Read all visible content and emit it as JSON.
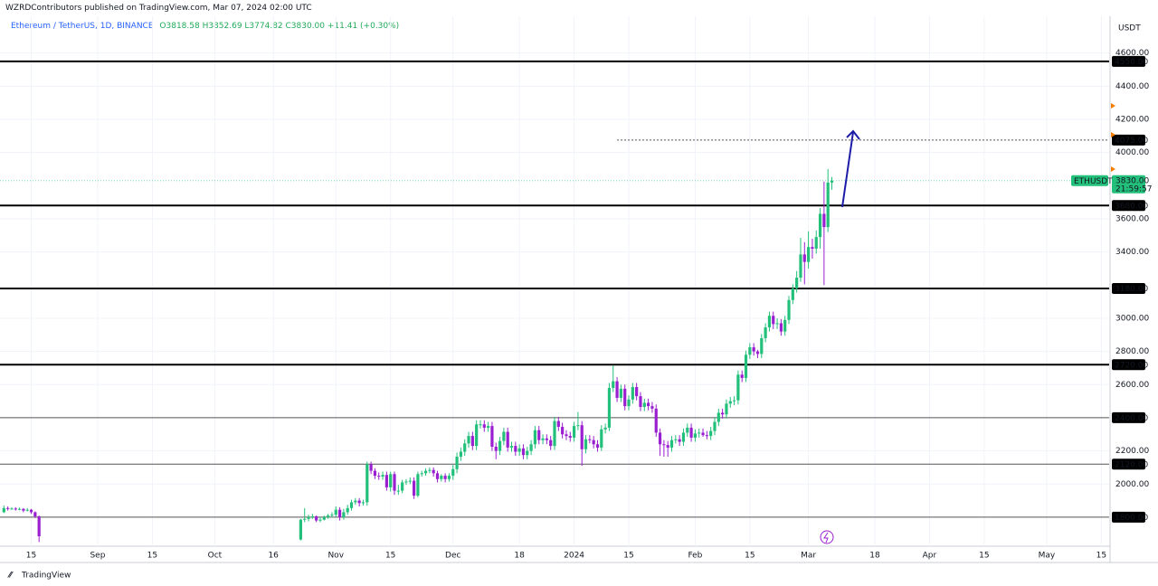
{
  "chart_data": {
    "type": "candlestick",
    "published": "WZRDContributors published on TradingView.com, Mar 07, 2024 02:00 UTC",
    "symbol": "Ethereum / TetherUS, 1D, BINANCE",
    "ohlc_text": "O3818.58  H3852.69  L3774.82  C3830.00  +11.41 (+0.30%)",
    "unit": "USDT",
    "brand": "TradingView",
    "up_color": "#22c07a",
    "down_color": "#9a1fd0",
    "ylim": [
      1625,
      4920
    ],
    "xlim": [
      "2023-08-07",
      "2024-05-17"
    ],
    "grid": true,
    "yticks": [
      {
        "value": 2000,
        "label": "2000.00"
      },
      {
        "value": 2200,
        "label": "2200.00"
      },
      {
        "value": 2600,
        "label": "2600.00"
      },
      {
        "value": 2800,
        "label": "2800.00"
      },
      {
        "value": 3000,
        "label": "3000.00"
      },
      {
        "value": 3400,
        "label": "3400.00"
      },
      {
        "value": 3600,
        "label": "3600.00"
      },
      {
        "value": 4000,
        "label": "4000.00"
      },
      {
        "value": 4200,
        "label": "4200.00"
      },
      {
        "value": 4400,
        "label": "4400.00"
      },
      {
        "value": 4600,
        "label": "4600.00"
      }
    ],
    "xticks": [
      {
        "value": "2023-08-15",
        "label": "15"
      },
      {
        "value": "2023-09-01",
        "label": "Sep"
      },
      {
        "value": "2023-09-15",
        "label": "15"
      },
      {
        "value": "2023-10-01",
        "label": "Oct"
      },
      {
        "value": "2023-10-16",
        "label": "16"
      },
      {
        "value": "2023-11-01",
        "label": "Nov"
      },
      {
        "value": "2023-11-15",
        "label": "15"
      },
      {
        "value": "2023-12-01",
        "label": "Dec"
      },
      {
        "value": "2023-12-18",
        "label": "18"
      },
      {
        "value": "2024-01-01",
        "label": "2024"
      },
      {
        "value": "2024-01-15",
        "label": "15"
      },
      {
        "value": "2024-02-01",
        "label": "Feb"
      },
      {
        "value": "2024-02-15",
        "label": "15"
      },
      {
        "value": "2024-03-01",
        "label": "Mar"
      },
      {
        "value": "2024-03-18",
        "label": "18"
      },
      {
        "value": "2024-04-01",
        "label": "Apr"
      },
      {
        "value": "2024-04-15",
        "label": "15"
      },
      {
        "value": "2024-05-01",
        "label": "May"
      },
      {
        "value": "2024-05-15",
        "label": "15"
      }
    ],
    "levels": [
      {
        "value": 4550,
        "label": "4550.00",
        "line_width": 2
      },
      {
        "value": 3680,
        "label": "3680.00",
        "line_width": 2
      },
      {
        "value": 3180,
        "label": "3180.00",
        "line_width": 2
      },
      {
        "value": 2720,
        "label": "2720.00",
        "line_width": 2
      },
      {
        "value": 2400,
        "label": "2400.00",
        "line_width": 1
      },
      {
        "value": 2120,
        "label": "2120.00",
        "line_width": 1
      },
      {
        "value": 1800,
        "label": "1800.00",
        "line_width": 1
      }
    ],
    "target": {
      "value": 4075,
      "label": "4075.00",
      "start": "2024-01-12"
    },
    "last_price": {
      "value": 3830,
      "label": "3830.00",
      "name": "ETHUSDT",
      "countdown": "21:59:57"
    },
    "x": [
      "2023-08-08",
      "2023-08-09",
      "2023-08-10",
      "2023-08-11",
      "2023-08-12",
      "2023-08-13",
      "2023-08-14",
      "2023-08-15",
      "2023-08-16",
      "2023-08-17",
      "2023-10-23",
      "2023-10-24",
      "2023-10-25",
      "2023-10-26",
      "2023-10-27",
      "2023-10-28",
      "2023-10-29",
      "2023-10-30",
      "2023-10-31",
      "2023-11-01",
      "2023-11-02",
      "2023-11-03",
      "2023-11-04",
      "2023-11-05",
      "2023-11-06",
      "2023-11-07",
      "2023-11-08",
      "2023-11-09",
      "2023-11-10",
      "2023-11-11",
      "2023-11-12",
      "2023-11-13",
      "2023-11-14",
      "2023-11-15",
      "2023-11-16",
      "2023-11-17",
      "2023-11-18",
      "2023-11-19",
      "2023-11-20",
      "2023-11-21",
      "2023-11-22",
      "2023-11-23",
      "2023-11-24",
      "2023-11-25",
      "2023-11-26",
      "2023-11-27",
      "2023-11-28",
      "2023-11-29",
      "2023-11-30",
      "2023-12-01",
      "2023-12-02",
      "2023-12-03",
      "2023-12-04",
      "2023-12-05",
      "2023-12-06",
      "2023-12-07",
      "2023-12-08",
      "2023-12-09",
      "2023-12-10",
      "2023-12-11",
      "2023-12-12",
      "2023-12-13",
      "2023-12-14",
      "2023-12-15",
      "2023-12-16",
      "2023-12-17",
      "2023-12-18",
      "2023-12-19",
      "2023-12-20",
      "2023-12-21",
      "2023-12-22",
      "2023-12-23",
      "2023-12-24",
      "2023-12-25",
      "2023-12-26",
      "2023-12-27",
      "2023-12-28",
      "2023-12-29",
      "2023-12-30",
      "2023-12-31",
      "2024-01-01",
      "2024-01-02",
      "2024-01-03",
      "2024-01-04",
      "2024-01-05",
      "2024-01-06",
      "2024-01-07",
      "2024-01-08",
      "2024-01-09",
      "2024-01-10",
      "2024-01-11",
      "2024-01-12",
      "2024-01-13",
      "2024-01-14",
      "2024-01-15",
      "2024-01-16",
      "2024-01-17",
      "2024-01-18",
      "2024-01-19",
      "2024-01-20",
      "2024-01-21",
      "2024-01-22",
      "2024-01-23",
      "2024-01-24",
      "2024-01-25",
      "2024-01-26",
      "2024-01-27",
      "2024-01-28",
      "2024-01-29",
      "2024-01-30",
      "2024-01-31",
      "2024-02-01",
      "2024-02-02",
      "2024-02-03",
      "2024-02-04",
      "2024-02-05",
      "2024-02-06",
      "2024-02-07",
      "2024-02-08",
      "2024-02-09",
      "2024-02-10",
      "2024-02-11",
      "2024-02-12",
      "2024-02-13",
      "2024-02-14",
      "2024-02-15",
      "2024-02-16",
      "2024-02-17",
      "2024-02-18",
      "2024-02-19",
      "2024-02-20",
      "2024-02-21",
      "2024-02-22",
      "2024-02-23",
      "2024-02-24",
      "2024-02-25",
      "2024-02-26",
      "2024-02-27",
      "2024-02-28",
      "2024-02-29",
      "2024-03-01",
      "2024-03-02",
      "2024-03-03",
      "2024-03-04",
      "2024-03-05",
      "2024-03-06",
      "2024-03-07"
    ],
    "open": [
      1830,
      1855,
      1850,
      1852,
      1848,
      1850,
      1840,
      1845,
      1830,
      1805,
      1665,
      1785,
      1790,
      1800,
      1805,
      1780,
      1785,
      1800,
      1810,
      1815,
      1845,
      1800,
      1830,
      1855,
      1890,
      1900,
      1885,
      1890,
      2120,
      2080,
      2050,
      2045,
      2055,
      1980,
      2060,
      1960,
      1960,
      2010,
      2015,
      2020,
      1930,
      2060,
      2065,
      2080,
      2085,
      2065,
      2030,
      2050,
      2030,
      2050,
      2090,
      2165,
      2195,
      2245,
      2290,
      2230,
      2360,
      2360,
      2340,
      2350,
      2225,
      2200,
      2260,
      2315,
      2220,
      2230,
      2195,
      2215,
      2175,
      2200,
      2240,
      2325,
      2265,
      2275,
      2265,
      2230,
      2380,
      2345,
      2300,
      2290,
      2280,
      2350,
      2355,
      2210,
      2270,
      2265,
      2240,
      2220,
      2330,
      2340,
      2580,
      2620,
      2520,
      2575,
      2470,
      2510,
      2585,
      2530,
      2465,
      2490,
      2470,
      2455,
      2310,
      2240,
      2235,
      2220,
      2265,
      2270,
      2255,
      2310,
      2340,
      2280,
      2305,
      2310,
      2295,
      2290,
      2320,
      2375,
      2430,
      2420,
      2485,
      2500,
      2505,
      2660,
      2640,
      2780,
      2825,
      2800,
      2785,
      2880,
      2945,
      3015,
      2965,
      2970,
      2920,
      2990,
      3110,
      3180,
      3245,
      3385,
      3340,
      3430,
      3420,
      3490,
      3630,
      3550,
      3818.58
    ],
    "high": [
      1870,
      1865,
      1860,
      1860,
      1858,
      1855,
      1855,
      1850,
      1835,
      1810,
      1790,
      1855,
      1815,
      1820,
      1810,
      1800,
      1810,
      1820,
      1830,
      1865,
      1860,
      1850,
      1875,
      1905,
      1915,
      1915,
      1905,
      2135,
      2135,
      2095,
      2070,
      2075,
      2075,
      2075,
      2075,
      1995,
      2025,
      2030,
      2040,
      2040,
      2075,
      2080,
      2095,
      2100,
      2100,
      2080,
      2060,
      2065,
      2065,
      2115,
      2190,
      2220,
      2270,
      2315,
      2315,
      2385,
      2385,
      2385,
      2375,
      2375,
      2250,
      2285,
      2340,
      2340,
      2255,
      2255,
      2240,
      2240,
      2225,
      2265,
      2350,
      2350,
      2300,
      2300,
      2290,
      2405,
      2405,
      2370,
      2325,
      2315,
      2375,
      2435,
      2380,
      2295,
      2295,
      2290,
      2265,
      2355,
      2365,
      2610,
      2715,
      2645,
      2600,
      2600,
      2535,
      2610,
      2610,
      2555,
      2515,
      2515,
      2495,
      2480,
      2335,
      2265,
      2260,
      2290,
      2295,
      2295,
      2335,
      2365,
      2365,
      2330,
      2335,
      2335,
      2320,
      2345,
      2400,
      2455,
      2455,
      2510,
      2525,
      2530,
      2685,
      2685,
      2805,
      2850,
      2850,
      2810,
      2905,
      2970,
      3040,
      3040,
      3000,
      2995,
      3015,
      3135,
      3205,
      3285,
      3485,
      3460,
      3525,
      3480,
      3530,
      3665,
      3825,
      3900,
      3852.69
    ],
    "low": [
      1825,
      1840,
      1845,
      1840,
      1842,
      1830,
      1835,
      1820,
      1795,
      1650,
      1660,
      1770,
      1775,
      1790,
      1770,
      1770,
      1780,
      1790,
      1800,
      1800,
      1780,
      1785,
      1815,
      1840,
      1875,
      1865,
      1870,
      1870,
      2060,
      2030,
      2025,
      2025,
      1960,
      1955,
      1935,
      1935,
      1945,
      1995,
      2000,
      1910,
      1920,
      2045,
      2050,
      2065,
      2045,
      2010,
      2015,
      2010,
      2015,
      2025,
      2065,
      2140,
      2170,
      2220,
      2205,
      2205,
      2335,
      2315,
      2315,
      2200,
      2150,
      2175,
      2235,
      2195,
      2195,
      2170,
      2170,
      2150,
      2150,
      2175,
      2215,
      2240,
      2240,
      2240,
      2205,
      2205,
      2320,
      2275,
      2265,
      2255,
      2255,
      2325,
      2110,
      2185,
      2245,
      2215,
      2195,
      2200,
      2305,
      2320,
      2555,
      2495,
      2495,
      2445,
      2445,
      2485,
      2505,
      2440,
      2440,
      2445,
      2430,
      2285,
      2170,
      2165,
      2165,
      2195,
      2245,
      2230,
      2230,
      2285,
      2255,
      2255,
      2280,
      2285,
      2270,
      2265,
      2295,
      2350,
      2395,
      2395,
      2460,
      2475,
      2480,
      2615,
      2615,
      2755,
      2775,
      2760,
      2760,
      2855,
      2920,
      2935,
      2935,
      2895,
      2895,
      2965,
      3085,
      3155,
      3220,
      3205,
      3300,
      3360,
      3390,
      3420,
      3200,
      3520,
      3774.82
    ],
    "close": [
      1855,
      1850,
      1852,
      1848,
      1850,
      1840,
      1845,
      1830,
      1805,
      1685,
      1785,
      1790,
      1800,
      1805,
      1780,
      1785,
      1800,
      1810,
      1815,
      1845,
      1800,
      1830,
      1855,
      1890,
      1900,
      1885,
      1890,
      2120,
      2080,
      2050,
      2045,
      2055,
      1980,
      2060,
      1960,
      1960,
      2010,
      2015,
      2020,
      1930,
      2060,
      2065,
      2080,
      2085,
      2065,
      2030,
      2050,
      2030,
      2050,
      2090,
      2165,
      2195,
      2245,
      2290,
      2230,
      2360,
      2360,
      2340,
      2350,
      2225,
      2200,
      2260,
      2315,
      2220,
      2230,
      2195,
      2215,
      2175,
      2200,
      2240,
      2325,
      2265,
      2275,
      2265,
      2230,
      2380,
      2345,
      2300,
      2290,
      2280,
      2350,
      2355,
      2210,
      2270,
      2265,
      2240,
      2220,
      2330,
      2340,
      2580,
      2620,
      2520,
      2575,
      2470,
      2510,
      2585,
      2530,
      2465,
      2490,
      2470,
      2455,
      2310,
      2240,
      2235,
      2220,
      2265,
      2270,
      2255,
      2310,
      2340,
      2280,
      2305,
      2310,
      2295,
      2290,
      2320,
      2375,
      2430,
      2420,
      2485,
      2500,
      2505,
      2660,
      2640,
      2780,
      2825,
      2800,
      2785,
      2880,
      2945,
      3015,
      2965,
      2970,
      2920,
      2990,
      3110,
      3180,
      3245,
      3385,
      3340,
      3430,
      3420,
      3490,
      3630,
      3550,
      3818.58,
      3830
    ]
  }
}
